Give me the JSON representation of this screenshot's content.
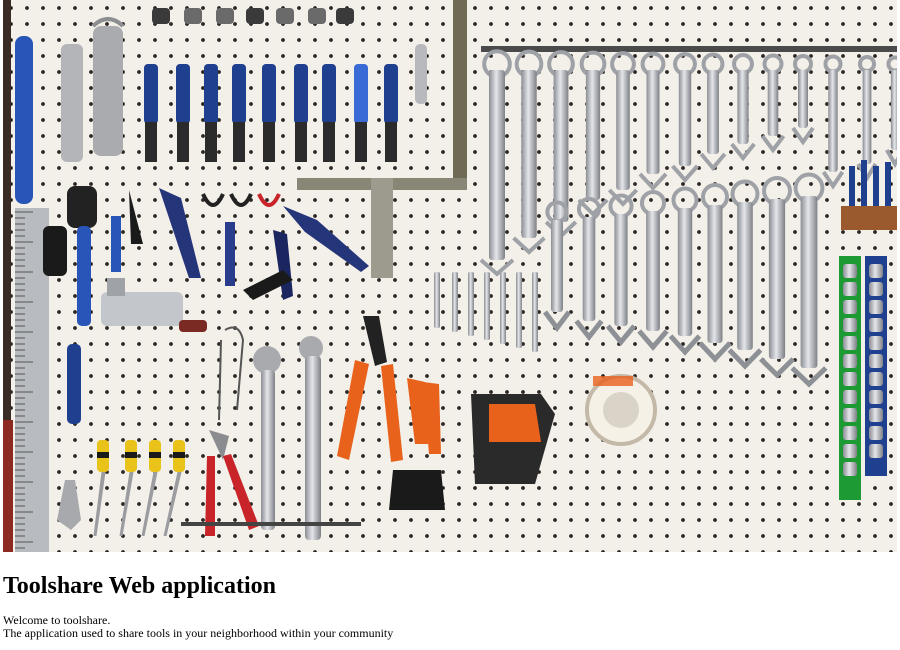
{
  "page": {
    "title": "Toolshare Web application",
    "welcome": "Welcome to toolshare.",
    "tagline": "The application used to share tools in your neighborhood within your community"
  },
  "hero_image": {
    "icon": "tool-pegboard-photo",
    "colors": {
      "board": "#f3efe9",
      "hole": "#2c2624",
      "chrome": "#c9cbcf",
      "chrome_dark": "#7d8086",
      "blue": "#1f3f8f",
      "orange": "#e8621c",
      "red": "#c8242a",
      "yellow": "#e9c21a",
      "green": "#1e9a34",
      "black": "#1a1a1a",
      "wood": "#9a5a2e"
    }
  }
}
